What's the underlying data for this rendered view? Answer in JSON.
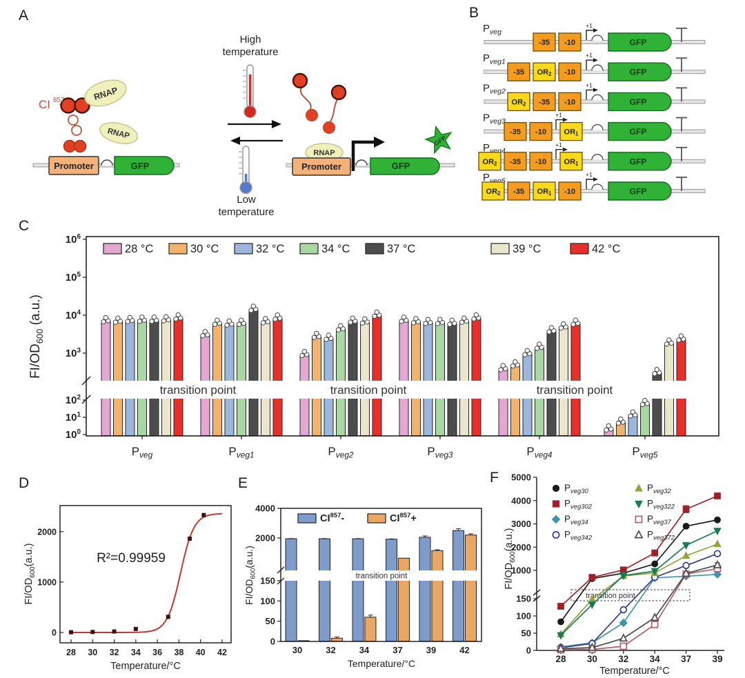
{
  "panel_letters": {
    "A": "A",
    "B": "B",
    "C": "C",
    "D": "D",
    "E": "E",
    "F": "F"
  },
  "panelA": {
    "high_line1": "High",
    "high_line2": "temperature",
    "low_line1": "Low",
    "low_line2": "temperature",
    "rnap": "RNAP",
    "promoter": "Promoter",
    "gfp": "GFP",
    "ci_base": "CI",
    "ci_sup": "857",
    "star_label": "GFP",
    "colors": {
      "promoter": "#f2b27a",
      "gfp": "#2fb236",
      "rnap": "#eff0bc",
      "ci": "#e04023",
      "thermo_hot": "#d42a1e",
      "thermo_cold": "#5577cc"
    }
  },
  "panelB": {
    "plus1": "+1",
    "gfp_label": "GFP",
    "colors": {
      "core": "#f39c1f",
      "operator": "#f9d91a",
      "gfp": "#2fb236"
    },
    "rows": [
      {
        "base": "P",
        "sub": "veg",
        "p1last": false,
        "boxes": [
          {
            "t": "-35",
            "k": "core"
          },
          {
            "t": "-10",
            "k": "core"
          }
        ]
      },
      {
        "base": "P",
        "sub": "veg1",
        "p1last": false,
        "boxes": [
          {
            "t": "-35",
            "k": "core"
          },
          {
            "t": "OR",
            "s": "2",
            "k": "op"
          },
          {
            "t": "-10",
            "k": "core"
          }
        ]
      },
      {
        "base": "P",
        "sub": "veg2",
        "p1last": false,
        "boxes": [
          {
            "t": "OR",
            "s": "2",
            "k": "op"
          },
          {
            "t": "-35",
            "k": "core"
          },
          {
            "t": "-10",
            "k": "core"
          }
        ]
      },
      {
        "base": "P",
        "sub": "veg3",
        "p1last": true,
        "boxes": [
          {
            "t": "-35",
            "k": "core"
          },
          {
            "t": "-10",
            "k": "core"
          },
          {
            "t": "OR",
            "s": "1",
            "k": "op"
          }
        ]
      },
      {
        "base": "P",
        "sub": "veg4",
        "p1last": true,
        "boxes": [
          {
            "t": "OR",
            "s": "2",
            "k": "op"
          },
          {
            "t": "-35",
            "k": "core"
          },
          {
            "t": "-10",
            "k": "core"
          },
          {
            "t": "OR",
            "s": "1",
            "k": "op"
          }
        ]
      },
      {
        "base": "P",
        "sub": "veg5",
        "p1last": false,
        "boxes": [
          {
            "t": "OR",
            "s": "2",
            "k": "op"
          },
          {
            "t": "-35",
            "k": "core"
          },
          {
            "t": "OR",
            "s": "1",
            "k": "op"
          },
          {
            "t": "-10",
            "k": "core"
          }
        ]
      }
    ]
  },
  "chart_data": [
    {
      "panel": "C",
      "type": "bar",
      "scale": "log-broken",
      "ylabel": {
        "base": "FI/OD",
        "sub": "600",
        "rest": " (a.u.)"
      },
      "legend": [
        {
          "label": "28 °C",
          "color": "#e3a8d1"
        },
        {
          "label": "30 °C",
          "color": "#f2b36e"
        },
        {
          "label": "32 °C",
          "color": "#9db7dc"
        },
        {
          "label": "34 °C",
          "color": "#a8d7a4"
        },
        {
          "label": "37 °C",
          "color": "#4d4d4d"
        },
        {
          "label": "39 °C",
          "color": "#eae6cb"
        },
        {
          "label": "42 °C",
          "color": "#e8302a"
        }
      ],
      "groups": [
        {
          "base": "P",
          "sub": "veg"
        },
        {
          "base": "P",
          "sub": "veg1"
        },
        {
          "base": "P",
          "sub": "veg2"
        },
        {
          "base": "P",
          "sub": "veg3"
        },
        {
          "base": "P",
          "sub": "veg4"
        },
        {
          "base": "P",
          "sub": "veg5"
        }
      ],
      "values": [
        [
          7000,
          6800,
          7100,
          7200,
          7200,
          7400,
          8300
        ],
        [
          3000,
          6000,
          5700,
          6000,
          14000,
          6600,
          8200
        ],
        [
          900,
          2700,
          2400,
          4300,
          6800,
          6500,
          9800
        ],
        [
          7200,
          6600,
          6300,
          6300,
          6000,
          6800,
          8300
        ],
        [
          380,
          480,
          950,
          1400,
          3800,
          4800,
          6000
        ],
        [
          2,
          5,
          13,
          60,
          300,
          1800,
          2300
        ]
      ],
      "ytick_exponents": [
        0,
        1,
        2,
        3,
        4,
        5,
        6
      ],
      "break_label": "transition point",
      "ylim_log": [
        1,
        1000000
      ]
    },
    {
      "panel": "D",
      "type": "scatter-line",
      "x": [
        28,
        30,
        32,
        34,
        37,
        39,
        40.3
      ],
      "y": [
        5,
        10,
        20,
        70,
        310,
        1860,
        2330
      ],
      "fit": {
        "type": "logistic",
        "max": 2360,
        "midpoint": 38.15,
        "k": 0.62
      },
      "annotation": "R²=0.99959",
      "xticks": [
        28,
        30,
        32,
        34,
        36,
        38,
        40,
        42
      ],
      "yticks": [
        0,
        1000,
        2000
      ],
      "xlabel": "Temperature/°C",
      "ylabel": {
        "base": "FI/OD",
        "sub": "600",
        "rest": "(a.u.)"
      },
      "colors": {
        "curve": "#c0392b",
        "point": "#40100c"
      }
    },
    {
      "panel": "E",
      "type": "bar-broken",
      "categories": [
        "30",
        "32",
        "34",
        "37",
        "39",
        "42"
      ],
      "series": [
        {
          "name": {
            "base": "CI",
            "sup": "857",
            "suffix": "-"
          },
          "color": "#7d9cca",
          "values": [
            1950,
            1950,
            1950,
            1920,
            2050,
            2500
          ],
          "err": [
            15,
            15,
            15,
            20,
            90,
            120
          ]
        },
        {
          "name": {
            "base": "CI",
            "sup": "857",
            "suffix": "+"
          },
          "color": "#e8a764",
          "values": [
            2,
            8,
            60,
            640,
            1150,
            2200
          ],
          "err": [
            0,
            3,
            5,
            0,
            60,
            80
          ]
        }
      ],
      "yticks_lower": [
        0,
        50,
        100,
        150
      ],
      "yticks_upper": [
        2000,
        4000
      ],
      "break_label": "transition point",
      "xlabel": "Temperature/°C",
      "ylabel": {
        "base": "FI/OD",
        "sub": "600",
        "rest": "(a.u.)"
      }
    },
    {
      "panel": "F",
      "type": "line-broken",
      "x": [
        "28",
        "30",
        "32",
        "34",
        "37",
        "39"
      ],
      "series": [
        {
          "name": {
            "base": "P",
            "sub": "veg30"
          },
          "color": "#1a1a1a",
          "marker": "circle",
          "filled": true,
          "values": [
            83,
            650,
            880,
            1280,
            2900,
            3170
          ],
          "err": [
            0,
            0,
            0,
            0,
            60,
            0
          ]
        },
        {
          "name": {
            "base": "P",
            "sub": "veg302"
          },
          "color": "#a02028",
          "marker": "square",
          "filled": true,
          "values": [
            128,
            700,
            1020,
            1750,
            3630,
            4200
          ],
          "err": [
            0,
            0,
            0,
            0,
            150,
            0
          ]
        },
        {
          "name": {
            "base": "P",
            "sub": "veg34"
          },
          "color": "#3b96ab",
          "marker": "diamond",
          "filled": true,
          "values": [
            10,
            22,
            80,
            680,
            750,
            830
          ],
          "err": [
            0,
            0,
            0,
            0,
            0,
            0
          ]
        },
        {
          "name": {
            "base": "P",
            "sub": "veg342"
          },
          "color": "#333b8f",
          "marker": "circle",
          "filled": false,
          "values": [
            8,
            20,
            118,
            700,
            1210,
            1720
          ],
          "err": [
            0,
            0,
            0,
            0,
            0,
            0
          ]
        },
        {
          "name": {
            "base": "P",
            "sub": "veg32"
          },
          "color": "#95a23d",
          "marker": "triangle-up",
          "filled": true,
          "values": [
            47,
            148,
            760,
            890,
            1630,
            2130
          ],
          "err": [
            0,
            0,
            0,
            0,
            0,
            0
          ]
        },
        {
          "name": {
            "base": "P",
            "sub": "veg322"
          },
          "color": "#1a7a52",
          "marker": "triangle-down",
          "filled": true,
          "values": [
            44,
            133,
            780,
            970,
            2080,
            2700
          ],
          "err": [
            0,
            0,
            0,
            0,
            0,
            0
          ]
        },
        {
          "name": {
            "base": "P",
            "sub": "veg37"
          },
          "color": "#b5606e",
          "marker": "square",
          "filled": false,
          "values": [
            2,
            3,
            12,
            75,
            840,
            1080
          ],
          "err": [
            0,
            0,
            0,
            0,
            0,
            0
          ]
        },
        {
          "name": {
            "base": "P",
            "sub": "veg372"
          },
          "color": "#4a4a4a",
          "marker": "triangle-up",
          "filled": false,
          "values": [
            5,
            8,
            35,
            95,
            870,
            1230
          ],
          "err": [
            0,
            0,
            0,
            0,
            0,
            90
          ]
        }
      ],
      "yticks_lower": [
        0,
        50,
        100,
        150
      ],
      "yticks_upper": [
        1000,
        2000,
        3000,
        4000,
        5000
      ],
      "box_label": "transition point",
      "xlabel": "Temperature/°C",
      "ylabel": {
        "base": "FI/OD",
        "sub": "600",
        "rest": "(a.u.)"
      }
    }
  ]
}
